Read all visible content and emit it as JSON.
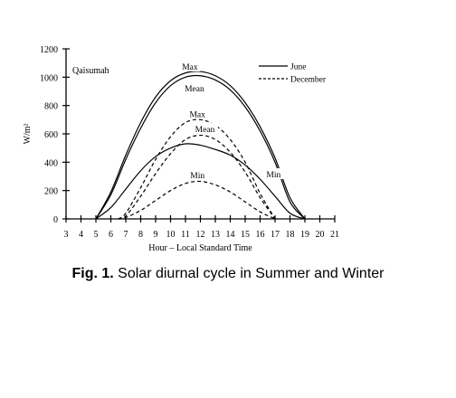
{
  "caption": {
    "label": "Fig. 1.",
    "text": " Solar diurnal cycle in Summer and Winter"
  },
  "chart_data": {
    "type": "line",
    "title": "",
    "place_label": "Qaisumah",
    "xlabel": "Hour – Local Standard Time",
    "ylabel": "W/m²",
    "xlim": [
      3,
      21
    ],
    "ylim": [
      0,
      1200
    ],
    "x_ticks": [
      3,
      4,
      5,
      6,
      7,
      8,
      9,
      10,
      11,
      12,
      13,
      14,
      15,
      16,
      17,
      18,
      19,
      20,
      21
    ],
    "y_ticks": [
      0,
      200,
      400,
      600,
      800,
      1000,
      1200
    ],
    "legend": {
      "position": "top-right",
      "entries": [
        {
          "name": "June",
          "style": "solid"
        },
        {
          "name": "December",
          "style": "dashed"
        }
      ]
    },
    "series": [
      {
        "group": "June",
        "label": "Max",
        "style": "solid",
        "points": [
          [
            5,
            0
          ],
          [
            6,
            190
          ],
          [
            7,
            450
          ],
          [
            8,
            680
          ],
          [
            9,
            860
          ],
          [
            10,
            975
          ],
          [
            11,
            1030
          ],
          [
            12,
            1040
          ],
          [
            13,
            1010
          ],
          [
            14,
            940
          ],
          [
            15,
            820
          ],
          [
            16,
            650
          ],
          [
            17,
            430
          ],
          [
            18,
            150
          ],
          [
            19,
            0
          ]
        ]
      },
      {
        "group": "June",
        "label": "Mean",
        "style": "solid",
        "points": [
          [
            5,
            0
          ],
          [
            6,
            170
          ],
          [
            7,
            420
          ],
          [
            8,
            640
          ],
          [
            9,
            820
          ],
          [
            10,
            940
          ],
          [
            11,
            1000
          ],
          [
            12,
            1010
          ],
          [
            13,
            980
          ],
          [
            14,
            910
          ],
          [
            15,
            790
          ],
          [
            16,
            620
          ],
          [
            17,
            400
          ],
          [
            18,
            120
          ],
          [
            19,
            0
          ]
        ]
      },
      {
        "group": "June",
        "label": "Min",
        "style": "solid",
        "points": [
          [
            5,
            0
          ],
          [
            6,
            80
          ],
          [
            7,
            210
          ],
          [
            8,
            340
          ],
          [
            9,
            440
          ],
          [
            10,
            500
          ],
          [
            11,
            530
          ],
          [
            12,
            520
          ],
          [
            13,
            490
          ],
          [
            14,
            450
          ],
          [
            15,
            380
          ],
          [
            16,
            280
          ],
          [
            17,
            160
          ],
          [
            18,
            40
          ],
          [
            19,
            0
          ]
        ]
      },
      {
        "group": "December",
        "label": "Max",
        "style": "dashed",
        "points": [
          [
            6.5,
            0
          ],
          [
            7,
            40
          ],
          [
            8,
            220
          ],
          [
            9,
            420
          ],
          [
            10,
            580
          ],
          [
            11,
            680
          ],
          [
            12,
            700
          ],
          [
            13,
            660
          ],
          [
            14,
            560
          ],
          [
            15,
            400
          ],
          [
            16,
            180
          ],
          [
            17,
            0
          ]
        ]
      },
      {
        "group": "December",
        "label": "Mean",
        "style": "dashed",
        "points": [
          [
            6.5,
            0
          ],
          [
            7,
            20
          ],
          [
            8,
            160
          ],
          [
            9,
            320
          ],
          [
            10,
            460
          ],
          [
            11,
            560
          ],
          [
            12,
            590
          ],
          [
            13,
            560
          ],
          [
            14,
            470
          ],
          [
            15,
            330
          ],
          [
            16,
            150
          ],
          [
            17,
            0
          ]
        ]
      },
      {
        "group": "December",
        "label": "Min",
        "style": "dashed",
        "points": [
          [
            6.5,
            0
          ],
          [
            7,
            10
          ],
          [
            8,
            60
          ],
          [
            9,
            130
          ],
          [
            10,
            200
          ],
          [
            11,
            250
          ],
          [
            12,
            265
          ],
          [
            13,
            240
          ],
          [
            14,
            190
          ],
          [
            15,
            120
          ],
          [
            16,
            50
          ],
          [
            17,
            0
          ]
        ]
      }
    ],
    "annotations": [
      {
        "text": "Max",
        "x": 11.3,
        "y": 1060
      },
      {
        "text": "Mean",
        "x": 11.6,
        "y": 905
      },
      {
        "text": "Max",
        "x": 11.8,
        "y": 725
      },
      {
        "text": "Mean",
        "x": 12.3,
        "y": 620
      },
      {
        "text": "Min",
        "x": 11.8,
        "y": 295
      },
      {
        "text": "Min",
        "x": 16.9,
        "y": 300
      }
    ]
  }
}
